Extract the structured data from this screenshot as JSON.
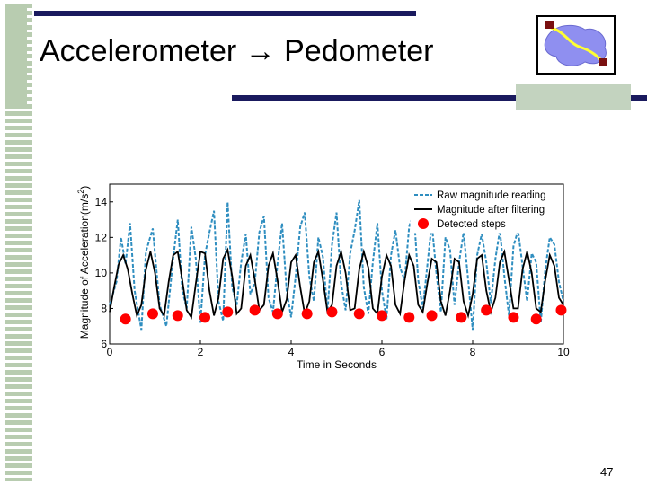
{
  "slide": {
    "title_left": "Accelerometer",
    "arrow": "→",
    "title_right": "Pedometer",
    "page_number": "47"
  },
  "logo": {
    "icon": "path-map-icon"
  },
  "colors": {
    "title_bars": "#1a1a5e",
    "stripes": "#b8ccb0",
    "raw_series": "#2f8ec0",
    "filtered_series": "#000000",
    "steps": "#ff0000"
  },
  "chart_data": {
    "type": "line",
    "xlabel": "Time in Seconds",
    "ylabel": "Magnitude of Acceleration(m/s",
    "ylabel_superscript": "2",
    "ylabel_close": ")",
    "xlim": [
      0,
      10
    ],
    "ylim": [
      6,
      15
    ],
    "x_ticks": [
      "0",
      "2",
      "4",
      "6",
      "8",
      "10"
    ],
    "y_ticks": [
      "6",
      "8",
      "10",
      "12",
      "14"
    ],
    "legend_position": "top-right",
    "series": [
      {
        "name": "Raw magnitude reading",
        "style": "dashed",
        "color": "#2f8ec0",
        "x": [
          0.0,
          0.15,
          0.25,
          0.35,
          0.45,
          0.55,
          0.7,
          0.8,
          0.95,
          1.1,
          1.25,
          1.4,
          1.5,
          1.6,
          1.7,
          1.8,
          1.9,
          2.0,
          2.1,
          2.2,
          2.3,
          2.4,
          2.5,
          2.6,
          2.7,
          2.8,
          2.9,
          3.0,
          3.1,
          3.2,
          3.3,
          3.4,
          3.5,
          3.6,
          3.7,
          3.8,
          3.9,
          4.0,
          4.1,
          4.2,
          4.3,
          4.4,
          4.5,
          4.6,
          4.7,
          4.8,
          4.9,
          5.0,
          5.1,
          5.2,
          5.3,
          5.4,
          5.5,
          5.6,
          5.7,
          5.8,
          5.9,
          6.0,
          6.1,
          6.2,
          6.3,
          6.4,
          6.5,
          6.6,
          6.7,
          6.8,
          6.9,
          7.0,
          7.1,
          7.2,
          7.3,
          7.4,
          7.5,
          7.6,
          7.7,
          7.8,
          7.9,
          8.0,
          8.1,
          8.2,
          8.3,
          8.4,
          8.5,
          8.6,
          8.7,
          8.8,
          8.9,
          9.0,
          9.1,
          9.2,
          9.3,
          9.4,
          9.5,
          9.6,
          9.7,
          9.8,
          9.9,
          10.0
        ],
        "y": [
          8.2,
          9.5,
          12.0,
          10.5,
          12.8,
          9.0,
          6.8,
          11.2,
          12.5,
          8.2,
          7.0,
          10.8,
          13.0,
          9.0,
          8.0,
          12.6,
          10.8,
          7.2,
          11.0,
          12.3,
          13.5,
          8.4,
          7.3,
          14.0,
          9.2,
          8.2,
          10.6,
          12.2,
          8.8,
          9.5,
          12.3,
          13.2,
          8.6,
          7.8,
          10.5,
          12.8,
          9.0,
          7.5,
          9.8,
          12.6,
          13.4,
          9.8,
          8.4,
          12.0,
          10.9,
          7.8,
          11.6,
          13.4,
          9.4,
          7.9,
          11.1,
          12.4,
          14.1,
          9.2,
          7.7,
          10.6,
          12.8,
          9.0,
          7.4,
          11.0,
          12.4,
          10.3,
          9.6,
          12.6,
          13.5,
          9.6,
          8.0,
          10.4,
          12.8,
          10.0,
          7.8,
          12.0,
          11.3,
          8.2,
          10.6,
          12.3,
          9.6,
          6.8,
          11.0,
          12.2,
          10.6,
          8.3,
          10.8,
          12.4,
          9.8,
          7.6,
          11.5,
          12.4,
          10.4,
          8.4,
          11.1,
          10.6,
          7.2,
          10.2,
          12.0,
          11.6,
          9.5,
          8.4
        ]
      },
      {
        "name": "Magnitude after filtering",
        "style": "solid",
        "color": "#000000",
        "x": [
          0.0,
          0.1,
          0.2,
          0.3,
          0.4,
          0.5,
          0.6,
          0.7,
          0.8,
          0.9,
          1.0,
          1.1,
          1.2,
          1.3,
          1.4,
          1.5,
          1.6,
          1.7,
          1.8,
          1.9,
          2.0,
          2.1,
          2.2,
          2.3,
          2.4,
          2.5,
          2.6,
          2.7,
          2.8,
          2.9,
          3.0,
          3.1,
          3.2,
          3.3,
          3.4,
          3.5,
          3.6,
          3.7,
          3.8,
          3.9,
          4.0,
          4.1,
          4.2,
          4.3,
          4.4,
          4.5,
          4.6,
          4.7,
          4.8,
          4.9,
          5.0,
          5.1,
          5.2,
          5.3,
          5.4,
          5.5,
          5.6,
          5.7,
          5.8,
          5.9,
          6.0,
          6.1,
          6.2,
          6.3,
          6.4,
          6.5,
          6.6,
          6.7,
          6.8,
          6.9,
          7.0,
          7.1,
          7.2,
          7.3,
          7.4,
          7.5,
          7.6,
          7.7,
          7.8,
          7.9,
          8.0,
          8.1,
          8.2,
          8.3,
          8.4,
          8.5,
          8.6,
          8.7,
          8.8,
          8.9,
          9.0,
          9.1,
          9.2,
          9.3,
          9.4,
          9.5,
          9.6,
          9.7,
          9.8,
          9.9,
          10.0
        ],
        "y": [
          7.8,
          9.2,
          10.5,
          11.0,
          10.2,
          8.8,
          7.6,
          8.2,
          10.2,
          11.2,
          10.0,
          8.0,
          7.6,
          9.5,
          11.0,
          11.2,
          9.6,
          7.9,
          7.5,
          9.4,
          11.2,
          11.1,
          9.0,
          7.6,
          8.6,
          10.8,
          11.3,
          9.8,
          7.7,
          8.0,
          10.4,
          11.0,
          9.6,
          7.9,
          8.2,
          10.4,
          11.1,
          9.6,
          7.8,
          8.5,
          10.6,
          11.0,
          9.2,
          7.7,
          8.4,
          10.6,
          11.2,
          9.6,
          7.8,
          8.2,
          10.4,
          11.2,
          10.0,
          7.9,
          8.0,
          10.2,
          11.2,
          10.3,
          8.0,
          7.7,
          9.8,
          11.0,
          10.4,
          8.2,
          7.7,
          9.6,
          11.0,
          10.4,
          8.2,
          7.8,
          9.4,
          10.8,
          10.6,
          8.4,
          7.6,
          9.0,
          10.8,
          10.6,
          8.4,
          7.6,
          8.8,
          10.8,
          11.0,
          9.0,
          7.8,
          8.6,
          10.6,
          11.2,
          9.6,
          8.0,
          8.0,
          10.2,
          11.2,
          10.0,
          8.0,
          7.8,
          9.6,
          11.0,
          10.4,
          8.6,
          8.2
        ]
      },
      {
        "name": "Detected steps",
        "style": "marker",
        "color": "#ff0000",
        "x": [
          0.35,
          0.95,
          1.5,
          2.1,
          2.6,
          3.2,
          3.7,
          4.35,
          4.9,
          5.5,
          6.0,
          6.6,
          7.1,
          7.75,
          8.3,
          8.9,
          9.4,
          9.95
        ],
        "y": [
          7.4,
          7.7,
          7.6,
          7.5,
          7.8,
          7.9,
          7.7,
          7.7,
          7.8,
          7.7,
          7.6,
          7.5,
          7.6,
          7.5,
          7.9,
          7.5,
          7.4,
          7.9
        ]
      }
    ]
  }
}
